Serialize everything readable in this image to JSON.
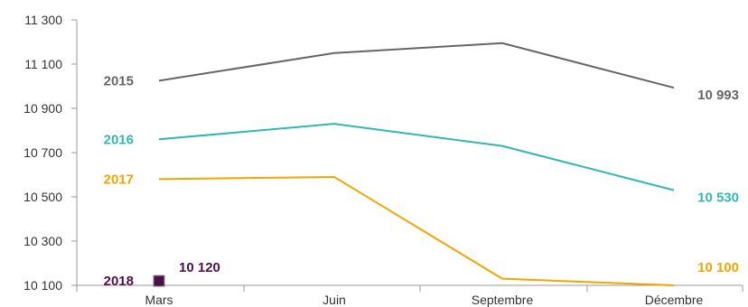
{
  "chart_data": {
    "type": "line",
    "categories": [
      "Mars",
      "Juin",
      "Septembre",
      "Décembre"
    ],
    "ylim": [
      10100,
      11300
    ],
    "yticks": [
      "11 300",
      "11 100",
      "10 900",
      "10 700",
      "10 500",
      "10 300",
      "10 100"
    ],
    "ytick_values": [
      11300,
      11100,
      10900,
      10700,
      10500,
      10300,
      10100
    ],
    "grid": false,
    "series": [
      {
        "name": "2015",
        "color": "#666666",
        "values": [
          11025,
          11150,
          11195,
          10993
        ],
        "end_label": "10 993"
      },
      {
        "name": "2016",
        "color": "#2fb8b2",
        "values": [
          10760,
          10830,
          10730,
          10530
        ],
        "end_label": "10 530"
      },
      {
        "name": "2017",
        "color": "#f0a500",
        "values": [
          10580,
          10590,
          10130,
          10100
        ],
        "end_label": "10 100"
      },
      {
        "name": "2018",
        "color": "#4b1248",
        "values": [
          10120,
          null,
          null,
          null
        ],
        "end_label": "10 120",
        "marker": "square"
      }
    ]
  }
}
